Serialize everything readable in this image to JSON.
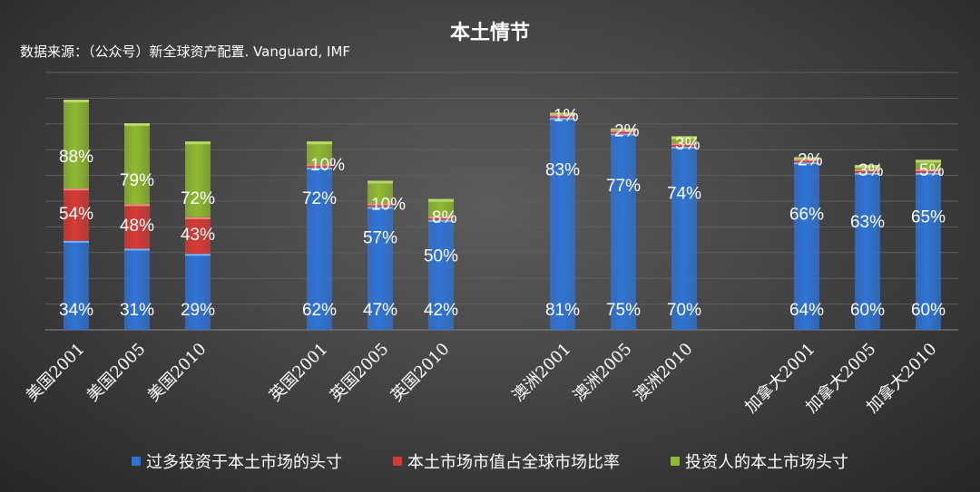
{
  "title": "本土情节",
  "source": "数据来源：（公众号）新全球资产配置. Vanguard, IMF",
  "colors": {
    "over_investment": "#2f74d6",
    "market_cap": "#d73a35",
    "home_position": "#8fba31",
    "background": "#3d3d3d",
    "grid": "#5e5e5e",
    "text": "#ffffff"
  },
  "chart_data": {
    "type": "bar",
    "stacked": true,
    "categories": [
      "美国2001",
      "美国2005",
      "美国2010",
      "英国2001",
      "英国2005",
      "英国2010",
      "澳洲2001",
      "澳洲2005",
      "澳洲2010",
      "加拿大2001",
      "加拿大2005",
      "加拿大2010"
    ],
    "groups": [
      "美国",
      "英国",
      "澳洲",
      "加拿大"
    ],
    "series": [
      {
        "name": "过多投资于本土市场的头寸",
        "values": [
          34,
          31,
          29,
          62,
          47,
          42,
          81,
          75,
          70,
          64,
          60,
          60
        ]
      },
      {
        "name": "本土市场市值占全球市场比率",
        "values": [
          54,
          48,
          43,
          10,
          10,
          8,
          1,
          2,
          3,
          2,
          3,
          5
        ]
      },
      {
        "name": "投资人的本土市场头寸",
        "values": [
          88,
          79,
          72,
          72,
          57,
          50,
          83,
          77,
          74,
          66,
          63,
          65
        ]
      }
    ],
    "value_suffix": "%",
    "title": "本土情节",
    "xlabel": "",
    "ylabel": "",
    "grid": true,
    "legend_position": "bottom"
  }
}
